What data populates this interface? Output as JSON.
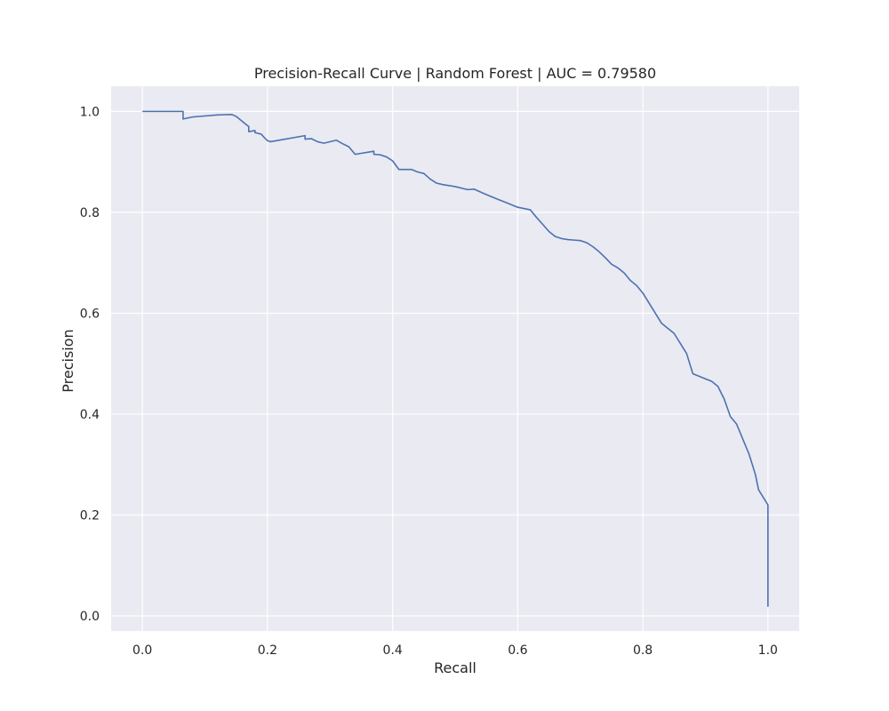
{
  "chart_data": {
    "type": "line",
    "title": "Precision-Recall Curve | Random Forest | AUC = 0.79580",
    "xlabel": "Recall",
    "ylabel": "Precision",
    "xlim": [
      -0.05,
      1.05
    ],
    "ylim": [
      -0.03,
      1.05
    ],
    "xticks": [
      "0.0",
      "0.2",
      "0.4",
      "0.6",
      "0.8",
      "1.0"
    ],
    "yticks": [
      "0.0",
      "0.2",
      "0.4",
      "0.6",
      "0.8",
      "1.0"
    ],
    "grid": true,
    "legend": null,
    "colors": {
      "background": "#eaeaf2",
      "grid": "#ffffff",
      "line": "#4c72b0"
    },
    "series": [
      {
        "x": [
          0.0,
          0.065,
          0.065,
          0.08,
          0.12,
          0.143,
          0.15,
          0.155,
          0.16,
          0.165,
          0.17,
          0.17,
          0.18,
          0.18,
          0.19,
          0.195,
          0.2,
          0.205,
          0.26,
          0.26,
          0.27,
          0.28,
          0.29,
          0.31,
          0.32,
          0.33,
          0.34,
          0.37,
          0.37,
          0.38,
          0.39,
          0.4,
          0.41,
          0.43,
          0.44,
          0.45,
          0.46,
          0.47,
          0.48,
          0.5,
          0.52,
          0.53,
          0.55,
          0.57,
          0.58,
          0.59,
          0.6,
          0.62,
          0.63,
          0.64,
          0.65,
          0.66,
          0.67,
          0.68,
          0.69,
          0.7,
          0.71,
          0.72,
          0.73,
          0.74,
          0.75,
          0.76,
          0.77,
          0.78,
          0.79,
          0.8,
          0.81,
          0.82,
          0.83,
          0.84,
          0.85,
          0.86,
          0.87,
          0.88,
          0.89,
          0.9,
          0.91,
          0.92,
          0.93,
          0.94,
          0.95,
          0.96,
          0.97,
          0.98,
          0.985,
          0.99,
          0.995,
          1.0,
          1.0
        ],
        "y": [
          1.0,
          1.0,
          0.985,
          0.989,
          0.993,
          0.994,
          0.99,
          0.985,
          0.98,
          0.975,
          0.97,
          0.96,
          0.962,
          0.958,
          0.955,
          0.948,
          0.942,
          0.94,
          0.952,
          0.945,
          0.946,
          0.94,
          0.937,
          0.943,
          0.936,
          0.93,
          0.915,
          0.921,
          0.915,
          0.914,
          0.91,
          0.902,
          0.885,
          0.885,
          0.88,
          0.877,
          0.866,
          0.858,
          0.855,
          0.851,
          0.845,
          0.846,
          0.835,
          0.825,
          0.82,
          0.815,
          0.81,
          0.805,
          0.79,
          0.776,
          0.762,
          0.752,
          0.748,
          0.746,
          0.745,
          0.744,
          0.74,
          0.732,
          0.722,
          0.71,
          0.697,
          0.69,
          0.68,
          0.665,
          0.655,
          0.64,
          0.62,
          0.6,
          0.58,
          0.57,
          0.56,
          0.54,
          0.52,
          0.48,
          0.475,
          0.47,
          0.465,
          0.455,
          0.43,
          0.395,
          0.38,
          0.35,
          0.32,
          0.28,
          0.25,
          0.24,
          0.23,
          0.22,
          0.018
        ]
      }
    ]
  }
}
